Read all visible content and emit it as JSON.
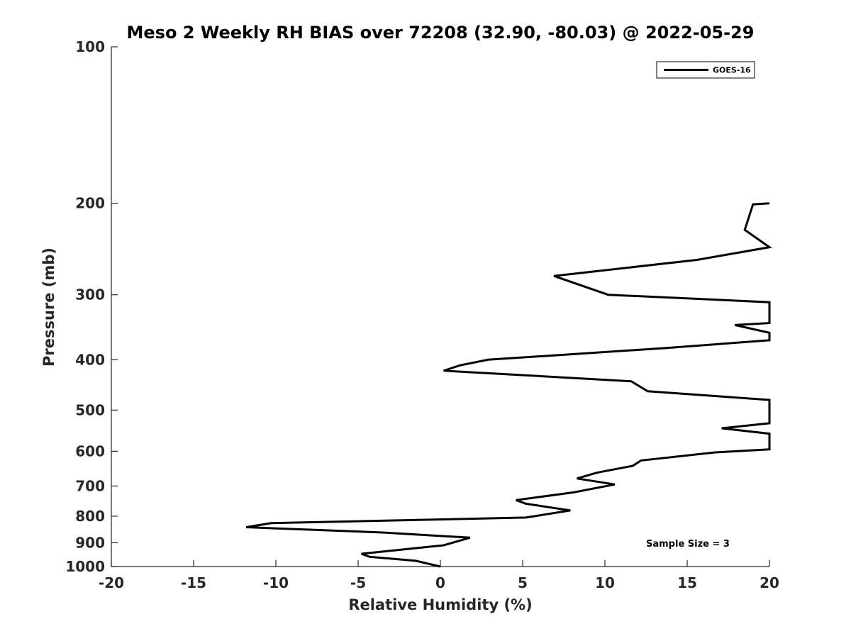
{
  "chart_data": {
    "type": "line",
    "title": "Meso 2 Weekly RH BIAS over 72208 (32.90, -80.03) @ 2022-05-29",
    "xlabel": "Relative Humidity (%)",
    "ylabel": "Pressure (mb)",
    "xlim": [
      -20,
      20
    ],
    "ylim": [
      100,
      1000
    ],
    "yscale": "log",
    "yreversed": true,
    "xticks": [
      -20,
      -15,
      -10,
      -5,
      0,
      5,
      10,
      15,
      20
    ],
    "xtick_labels": [
      "-20",
      "-15",
      "-10",
      "-5",
      "0",
      "5",
      "10",
      "15",
      "20"
    ],
    "yticks": [
      100,
      200,
      300,
      400,
      500,
      600,
      700,
      800,
      900,
      1000
    ],
    "ytick_labels": [
      "100",
      "200",
      "300",
      "400",
      "500",
      "600",
      "700",
      "800",
      "900",
      "1000"
    ],
    "grid": false,
    "legend_position": "top-right",
    "annotation": "Sample Size = 3",
    "series": [
      {
        "name": "GOES-16",
        "color": "#000000",
        "points": [
          [
            0.0,
            1000
          ],
          [
            -1.5,
            975
          ],
          [
            -4.3,
            958
          ],
          [
            -4.8,
            945
          ],
          [
            0.2,
            910
          ],
          [
            1.8,
            880
          ],
          [
            -3.5,
            860
          ],
          [
            -11.8,
            840
          ],
          [
            -10.3,
            825
          ],
          [
            5.2,
            805
          ],
          [
            7.9,
            780
          ],
          [
            5.2,
            757
          ],
          [
            4.6,
            745
          ],
          [
            8.1,
            720
          ],
          [
            10.6,
            695
          ],
          [
            8.3,
            677
          ],
          [
            9.5,
            660
          ],
          [
            11.7,
            640
          ],
          [
            12.2,
            625
          ],
          [
            16.7,
            603
          ],
          [
            20.0,
            595
          ],
          [
            20.0,
            555
          ],
          [
            17.1,
            542
          ],
          [
            20.0,
            530
          ],
          [
            20.0,
            478
          ],
          [
            12.6,
            460
          ],
          [
            11.6,
            440
          ],
          [
            0.2,
            420
          ],
          [
            1.2,
            410
          ],
          [
            2.9,
            400
          ],
          [
            13.6,
            380
          ],
          [
            20.0,
            367
          ],
          [
            20.0,
            355
          ],
          [
            17.9,
            343
          ],
          [
            20.0,
            340
          ],
          [
            20.0,
            310
          ],
          [
            10.2,
            300
          ],
          [
            6.9,
            276
          ],
          [
            15.6,
            257
          ],
          [
            20.0,
            243
          ],
          [
            18.5,
            225
          ],
          [
            19.0,
            201
          ],
          [
            20.0,
            200
          ]
        ]
      }
    ]
  }
}
